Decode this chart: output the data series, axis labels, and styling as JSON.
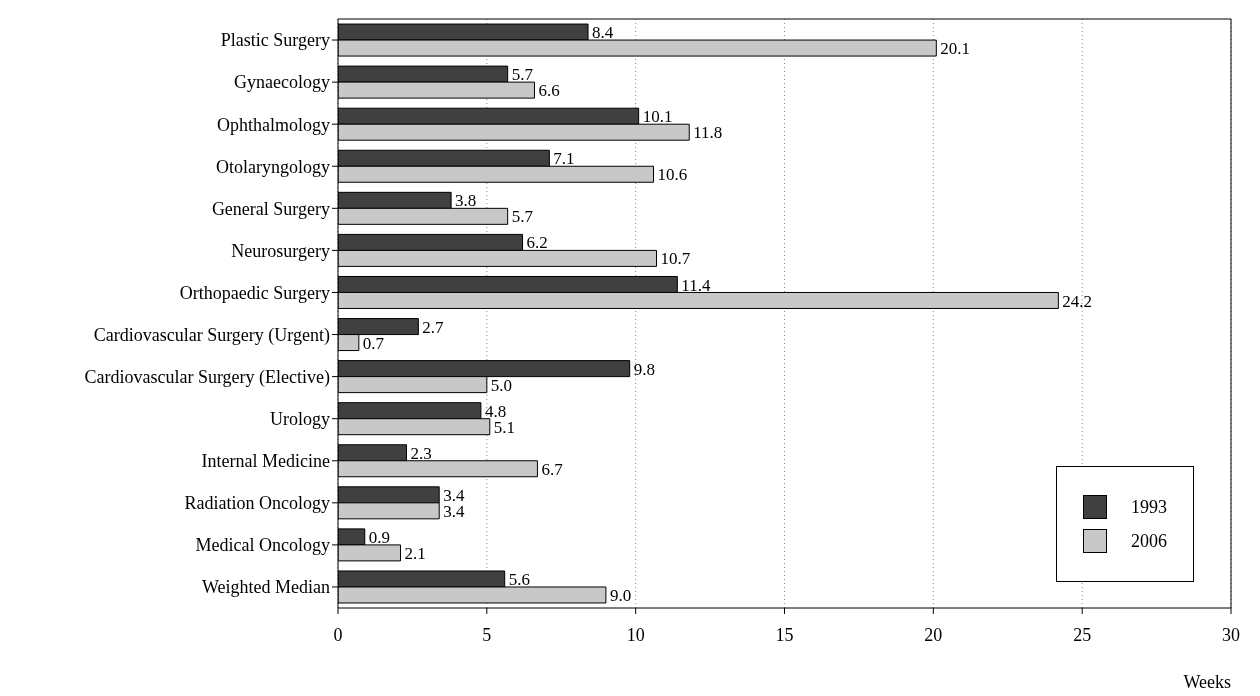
{
  "chart_data": {
    "type": "bar",
    "orientation": "horizontal",
    "xlabel": "Weeks",
    "categories": [
      "Plastic Surgery",
      "Gynaecology",
      "Ophthalmology",
      "Otolaryngology",
      "General Surgery",
      "Neurosurgery",
      "Orthopaedic Surgery",
      "Cardiovascular Surgery (Urgent)",
      "Cardiovascular Surgery (Elective)",
      "Urology",
      "Internal Medicine",
      "Radiation Oncology",
      "Medical Oncology",
      "Weighted Median"
    ],
    "series": [
      {
        "name": "1993",
        "color": "#404040",
        "values": [
          8.4,
          5.7,
          10.1,
          7.1,
          3.8,
          6.2,
          11.4,
          2.7,
          9.8,
          4.8,
          2.3,
          3.4,
          0.9,
          5.6
        ],
        "value_labels": [
          "8.4",
          "5.7",
          "10.1",
          "7.1",
          "3.8",
          "6.2",
          "11.4",
          "2.7",
          "9.8",
          "4.8",
          "2.3",
          "3.4",
          "0.9",
          "5.6"
        ]
      },
      {
        "name": "2006",
        "color": "#c8c8c8",
        "values": [
          20.1,
          6.6,
          11.8,
          10.6,
          5.7,
          10.7,
          24.2,
          0.7,
          5.0,
          5.1,
          6.7,
          3.4,
          2.1,
          9.0
        ],
        "value_labels": [
          "20.1",
          "6.6",
          "11.8",
          "10.6",
          "5.7",
          "10.7",
          "24.2",
          "0.7",
          "5.0",
          "5.1",
          "6.7",
          "3.4",
          "2.1",
          "9.0"
        ]
      }
    ],
    "xlim": [
      0,
      30
    ],
    "xticks": [
      0,
      5,
      10,
      15,
      20,
      25,
      30
    ],
    "grid": "x",
    "legend": "bottom right"
  }
}
